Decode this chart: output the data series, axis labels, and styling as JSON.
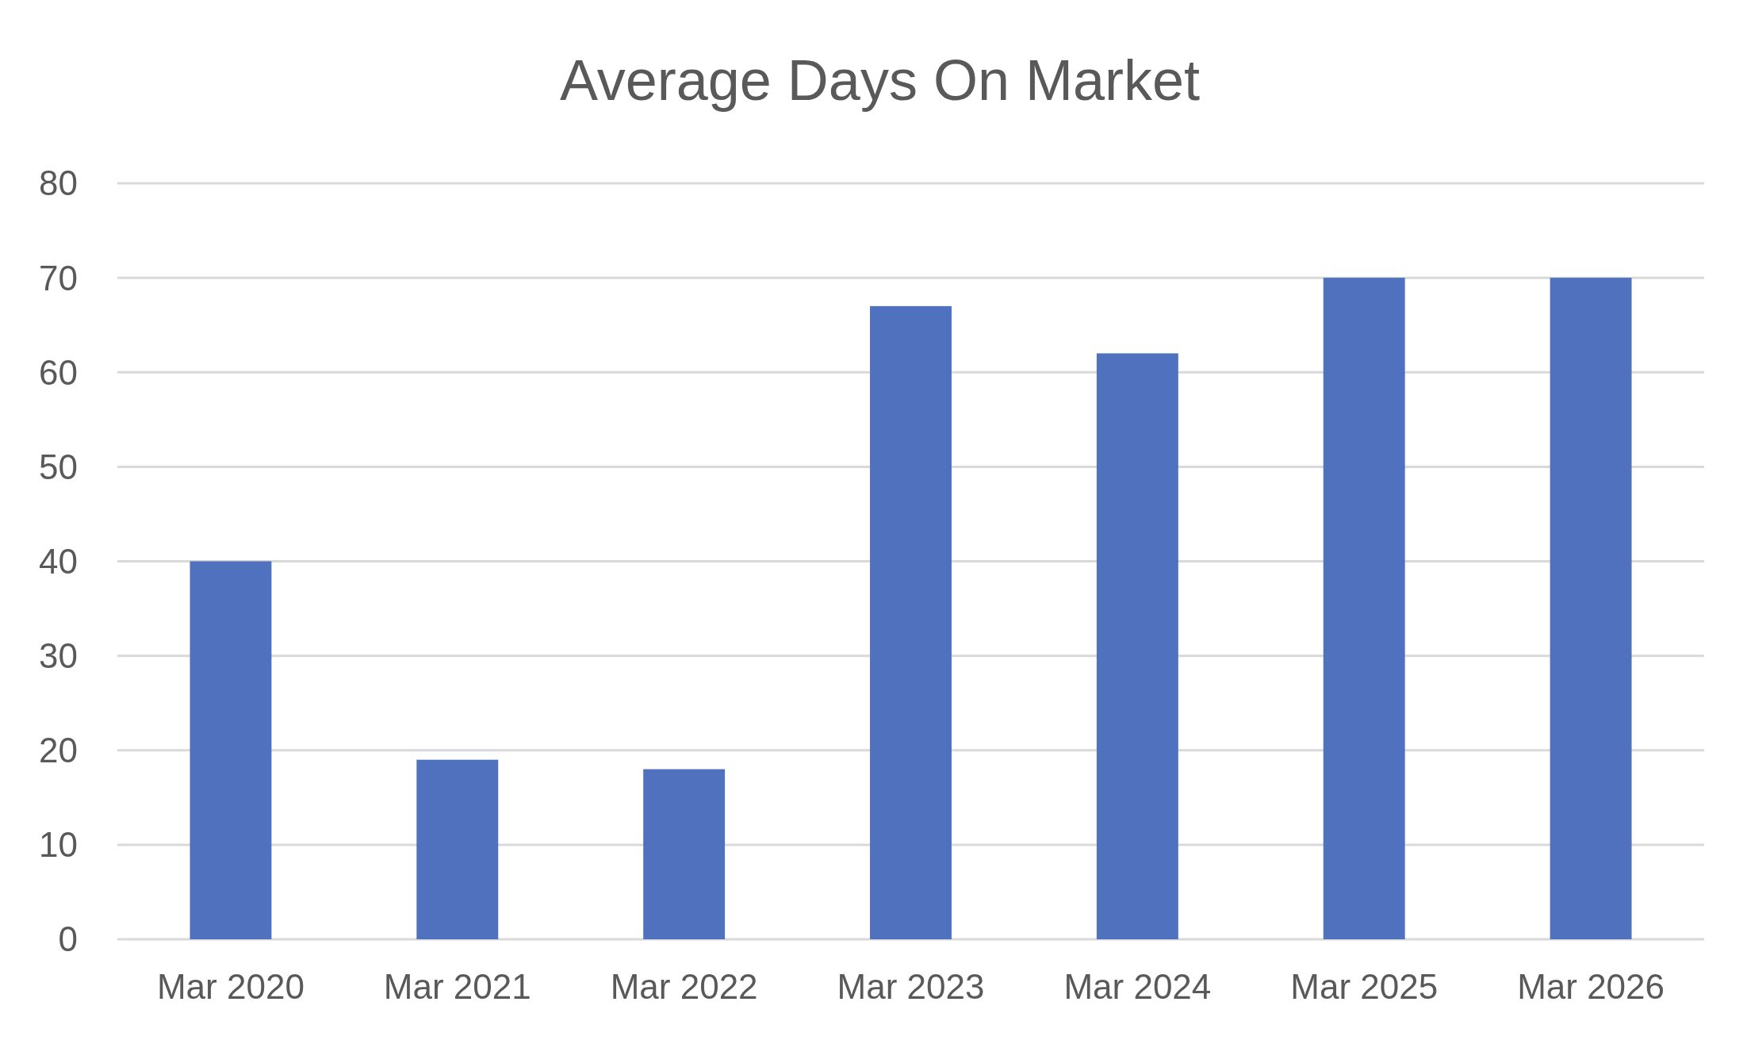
{
  "chart_data": {
    "type": "bar",
    "title": "Average Days On Market",
    "categories": [
      "Mar 2020",
      "Mar 2021",
      "Mar 2022",
      "Mar 2023",
      "Mar 2024",
      "Mar 2025",
      "Mar 2026"
    ],
    "values": [
      40,
      19,
      18,
      67,
      62,
      70,
      70
    ],
    "color": "#4f71be",
    "ylim": [
      0,
      80
    ],
    "yticks": [
      0,
      10,
      20,
      30,
      40,
      50,
      60,
      70,
      80
    ],
    "grid": "y"
  }
}
